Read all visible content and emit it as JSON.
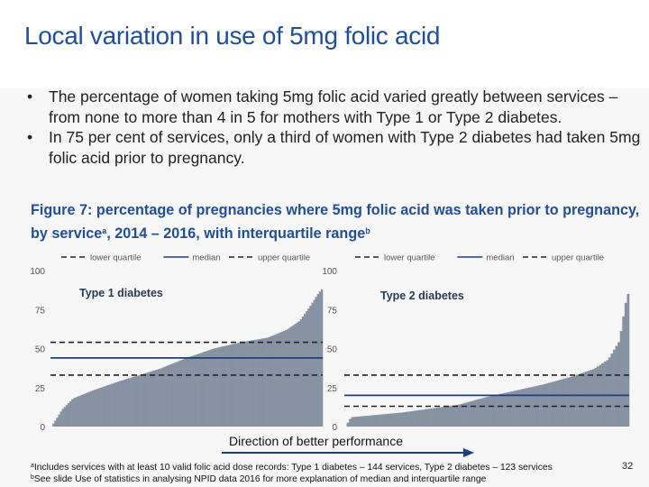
{
  "title": "Local variation in use of 5mg folic acid",
  "bullets": [
    "The percentage of women taking 5mg folic acid varied greatly between services – from none to more than 4 in 5 for mothers with Type 1 or Type 2 diabetes.",
    "In 75 per cent of services, only a third of women with Type 2 diabetes had taken 5mg folic acid prior to pregnancy."
  ],
  "bullet_symbol": "•",
  "figure": {
    "title_part1": "Figure 7: percentage of pregnancies where 5mg folic acid was taken prior to pregnancy, by service",
    "sup_a": "a",
    "title_part2": ", 2014 – 2016, with interquartile range",
    "sup_b": "b"
  },
  "direction_label": "Direction of better performance",
  "footnotes": {
    "a_mark": "a",
    "a_text": "Includes services with at least 10 valid folic acid dose records: Type 1 diabetes – 144 services, Type 2 diabetes – 123 services",
    "b_mark": "b",
    "b_text": "See slide Use of statistics in analysing NPID data 2016 for more explanation of median and interquartile range"
  },
  "page_number": "32",
  "colors": {
    "title": "#1f4e9c",
    "bar": "#8793a3",
    "median": "#1f3f7a",
    "quartile": "#222222",
    "arrow": "#1f3f7a"
  },
  "chart_data": [
    {
      "type": "bar",
      "title": "Type 1 diabetes",
      "n_services": 144,
      "ylim": [
        0,
        100
      ],
      "yticks": [
        0,
        25,
        50,
        75,
        100
      ],
      "grid": false,
      "legend": {
        "position": "top",
        "entries": [
          "lower quartile",
          "median",
          "upper quartile"
        ]
      },
      "sorted_values_anchors": [
        [
          0,
          0
        ],
        [
          0.04,
          11
        ],
        [
          0.08,
          18
        ],
        [
          0.15,
          23
        ],
        [
          0.25,
          29
        ],
        [
          0.4,
          37
        ],
        [
          0.5,
          44
        ],
        [
          0.6,
          50
        ],
        [
          0.7,
          54
        ],
        [
          0.8,
          57
        ],
        [
          0.87,
          62
        ],
        [
          0.92,
          68
        ],
        [
          0.96,
          78
        ],
        [
          0.99,
          86
        ],
        [
          1,
          88
        ]
      ],
      "lower_quartile": 33,
      "median": 44,
      "upper_quartile": 54
    },
    {
      "type": "bar",
      "title": "Type 2 diabetes",
      "n_services": 123,
      "ylim": [
        0,
        100
      ],
      "yticks": [
        0,
        25,
        50,
        75,
        100
      ],
      "grid": false,
      "legend": {
        "position": "top",
        "entries": [
          "lower quartile",
          "median",
          "upper quartile"
        ]
      },
      "sorted_values_anchors": [
        [
          0,
          0
        ],
        [
          0.02,
          6
        ],
        [
          0.2,
          9
        ],
        [
          0.4,
          14
        ],
        [
          0.5,
          19
        ],
        [
          0.6,
          23
        ],
        [
          0.7,
          27
        ],
        [
          0.8,
          32
        ],
        [
          0.88,
          37
        ],
        [
          0.93,
          43
        ],
        [
          0.97,
          55
        ],
        [
          0.99,
          78
        ],
        [
          1,
          85
        ]
      ],
      "lower_quartile": 13,
      "median": 20,
      "upper_quartile": 33
    }
  ]
}
